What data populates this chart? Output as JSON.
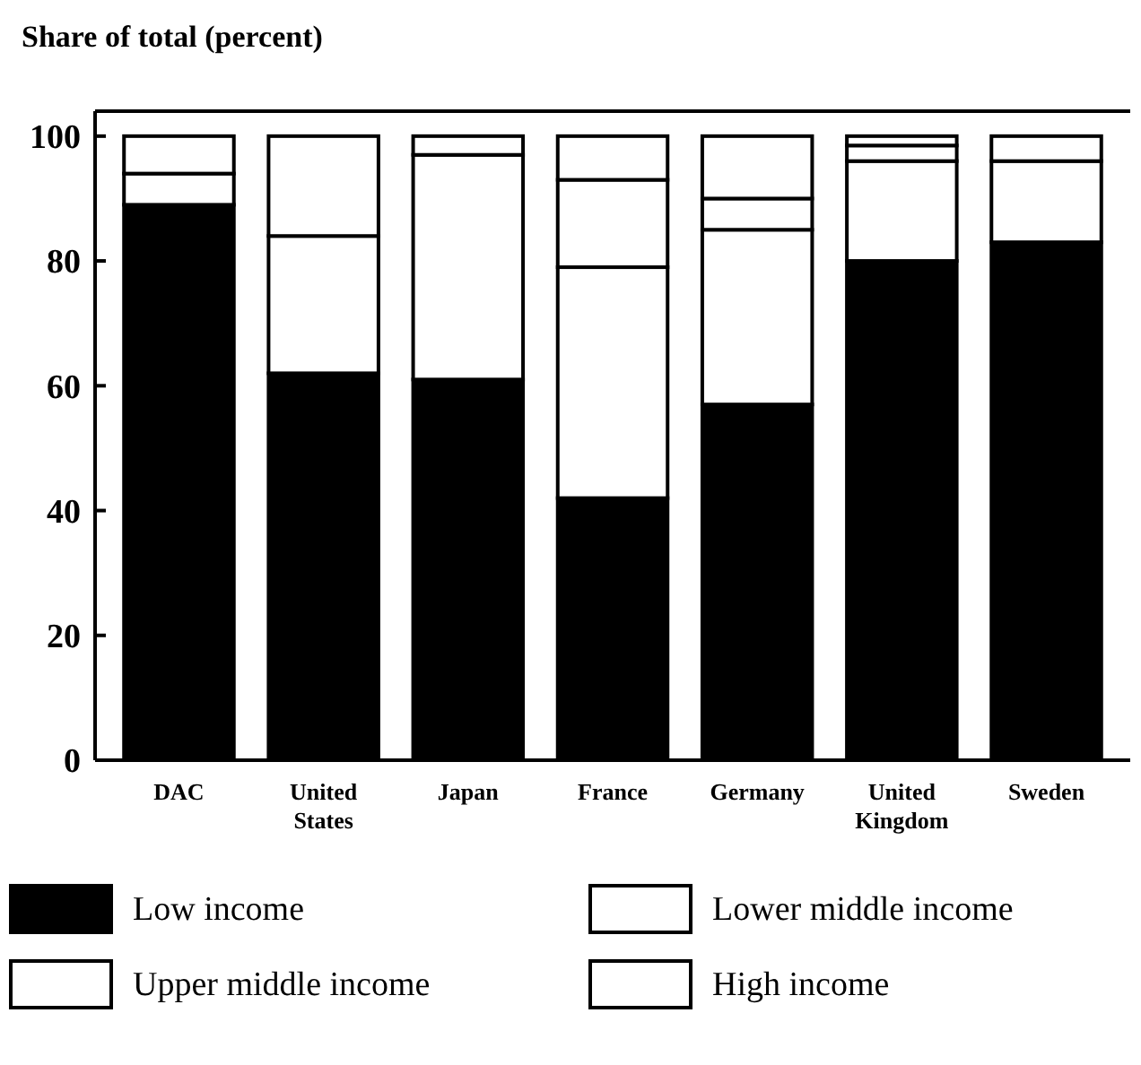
{
  "chart_data": {
    "type": "bar",
    "stacked": true,
    "title": "Share of total (percent)",
    "categories": [
      "DAC",
      "United States",
      "Japan",
      "France",
      "Germany",
      "United Kingdom",
      "Sweden"
    ],
    "series": [
      {
        "name": "Low income",
        "color": "#000000",
        "values": [
          89,
          62,
          61,
          42,
          57,
          80,
          83
        ]
      },
      {
        "name": "Lower middle income",
        "color": "#ffffff",
        "values": [
          5,
          22,
          36,
          37,
          28,
          16,
          13
        ]
      },
      {
        "name": "Upper middle income",
        "color": "#ffffff",
        "values": [
          0,
          0,
          0,
          14,
          5,
          2.5,
          0
        ]
      },
      {
        "name": "High income",
        "color": "#ffffff",
        "values": [
          6,
          16,
          3,
          7,
          10,
          1.5,
          4
        ]
      }
    ],
    "ylim": [
      0,
      104
    ],
    "yticks": [
      0,
      20,
      40,
      60,
      80,
      100
    ],
    "legend": "bottom"
  }
}
